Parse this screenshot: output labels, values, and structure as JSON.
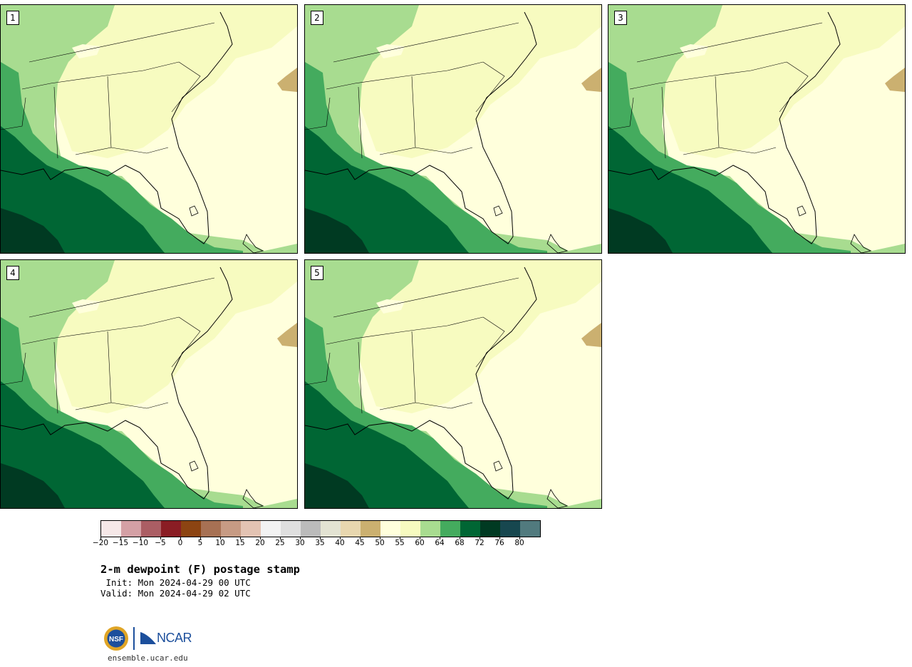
{
  "panels": [
    {
      "label": "1"
    },
    {
      "label": "2"
    },
    {
      "label": "3"
    },
    {
      "label": "4"
    },
    {
      "label": "5"
    }
  ],
  "colorbar": {
    "colors": [
      "#f6e8e8",
      "#d4a0a5",
      "#ab5e64",
      "#8a1d24",
      "#8c4412",
      "#a77154",
      "#c79b84",
      "#e3c3b3",
      "#f3f3f3",
      "#dfdfdf",
      "#bbbbbb",
      "#e3e3d3",
      "#e8d7af",
      "#cbb070",
      "#ffffdc",
      "#f7fbc0",
      "#a8dc90",
      "#44ab5e",
      "#006634",
      "#003a22",
      "#17474f",
      "#517a7e"
    ],
    "tick_labels": [
      "−20",
      "−15",
      "−10",
      "−5",
      "0",
      "5",
      "10",
      "15",
      "20",
      "25",
      "30",
      "35",
      "40",
      "45",
      "50",
      "55",
      "60",
      "64",
      "68",
      "72",
      "76",
      "80"
    ]
  },
  "map_colors": {
    "lightest": "#ffffdc",
    "light": "#f7fbc0",
    "mid": "#a8dc90",
    "green": "#44ab5e",
    "dark": "#006634",
    "darkest": "#003a22",
    "tan": "#cbb070"
  },
  "title": "2-m dewpoint (F) postage stamp",
  "init_text": " Init: Mon 2024-04-29 00 UTC",
  "valid_text": "Valid: Mon 2024-04-29 02 UTC",
  "logos": {
    "nsf": "NSF",
    "ncar": "NCAR"
  },
  "site": "ensemble.ucar.edu"
}
